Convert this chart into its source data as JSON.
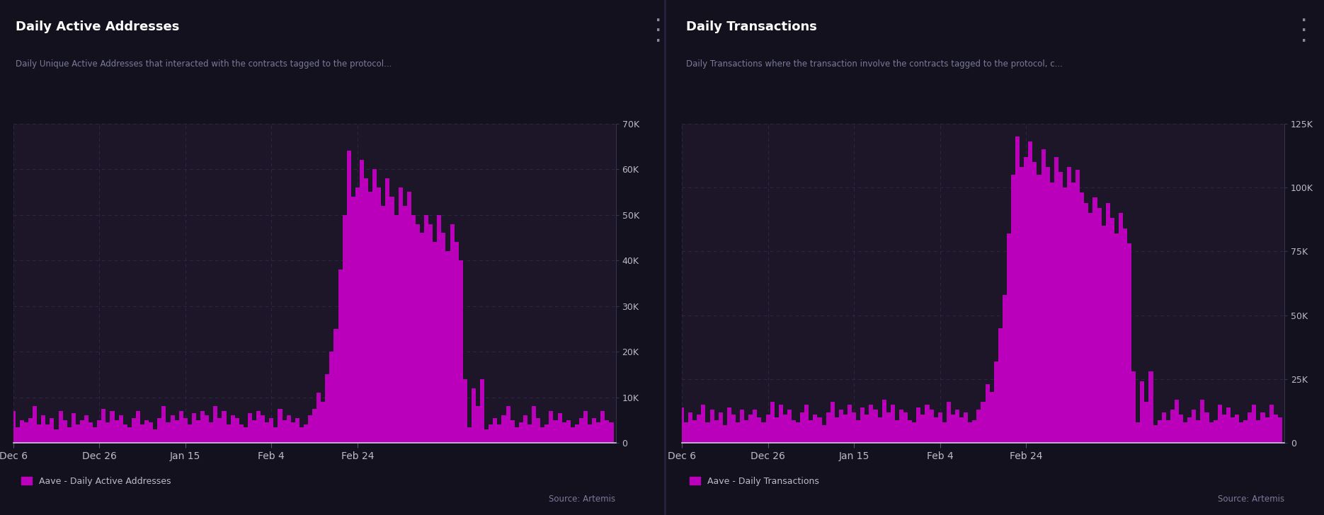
{
  "title1": "Daily Active Addresses",
  "title2": "Daily Transactions",
  "subtitle1": "Daily Unique Active Addresses that interacted with the contracts tagged to the protocol...",
  "subtitle2": "Daily Transactions where the transaction involve the contracts tagged to the protocol, c...",
  "legend1": "Aave - Daily Active Addresses",
  "legend2": "Aave - Daily Transactions",
  "source": "Source: Artemis",
  "xtick_labels": [
    "Dec 6",
    "Dec 26",
    "Jan 15",
    "Feb 4",
    "Feb 24"
  ],
  "yticks1": [
    0,
    10000,
    20000,
    30000,
    40000,
    50000,
    60000,
    70000
  ],
  "ytick_labels1": [
    "0",
    "10K",
    "20K",
    "30K",
    "40K",
    "50K",
    "60K",
    "70K"
  ],
  "yticks2": [
    0,
    25000,
    50000,
    75000,
    100000,
    125000
  ],
  "ytick_labels2": [
    "0",
    "25K",
    "50K",
    "75K",
    "100K",
    "125K"
  ],
  "bar_color": "#bb00bb",
  "bg_color": "#14111e",
  "panel_bg": "#1c1628",
  "grid_color": "#2e2645",
  "title_color": "#ffffff",
  "subtitle_color": "#7a7a9a",
  "tick_color": "#bbbbcc",
  "addresses_data": [
    7000,
    3500,
    5000,
    4500,
    5500,
    8000,
    4000,
    6000,
    4000,
    5500,
    3000,
    7000,
    5000,
    3500,
    6500,
    4000,
    5000,
    6000,
    4500,
    3500,
    5000,
    7500,
    4500,
    7000,
    5000,
    6000,
    4000,
    3500,
    5500,
    7000,
    4000,
    5000,
    4500,
    3000,
    5500,
    8000,
    4500,
    6000,
    5000,
    7000,
    5500,
    4000,
    6500,
    5000,
    7000,
    6000,
    4500,
    8000,
    5500,
    7000,
    4000,
    6000,
    5500,
    4000,
    3500,
    6500,
    5000,
    7000,
    6000,
    4500,
    5500,
    3500,
    7500,
    5000,
    6000,
    4500,
    5500,
    3500,
    4000,
    6000,
    7500,
    11000,
    9000,
    15000,
    20000,
    25000,
    38000,
    50000,
    64000,
    54000,
    56000,
    62000,
    58000,
    55000,
    60000,
    56000,
    52000,
    58000,
    54000,
    50000,
    56000,
    52000,
    55000,
    50000,
    48000,
    46000,
    50000,
    48000,
    44000,
    50000,
    46000,
    42000,
    48000,
    44000,
    40000,
    14000,
    3500,
    12000,
    8000,
    14000,
    3000,
    4000,
    5500,
    4000,
    6000,
    8000,
    5000,
    3500,
    4500,
    6000,
    4000,
    8000,
    5500,
    3500,
    4000,
    7000,
    5000,
    6500,
    4500,
    5000,
    3500,
    4000,
    5500,
    7000,
    4000,
    5500,
    4500,
    7000,
    5000,
    4500
  ],
  "transactions_data": [
    14000,
    8000,
    12000,
    9000,
    11000,
    15000,
    8000,
    13000,
    9000,
    12000,
    7000,
    14000,
    11000,
    8000,
    13000,
    9000,
    11000,
    13000,
    10000,
    8000,
    11000,
    16000,
    10000,
    15000,
    11000,
    13000,
    9000,
    8000,
    12000,
    15000,
    9000,
    11000,
    10000,
    7000,
    12000,
    16000,
    10000,
    13000,
    11000,
    15000,
    12000,
    9000,
    14000,
    11000,
    15000,
    13000,
    10000,
    17000,
    12000,
    15000,
    9000,
    13000,
    12000,
    9000,
    8000,
    14000,
    11000,
    15000,
    13000,
    10000,
    12000,
    8000,
    16000,
    11000,
    13000,
    10000,
    12000,
    8000,
    9000,
    13000,
    16000,
    23000,
    20000,
    32000,
    45000,
    58000,
    82000,
    105000,
    120000,
    108000,
    112000,
    118000,
    110000,
    105000,
    115000,
    108000,
    102000,
    112000,
    106000,
    100000,
    108000,
    102000,
    107000,
    98000,
    94000,
    90000,
    96000,
    92000,
    85000,
    94000,
    88000,
    82000,
    90000,
    84000,
    78000,
    28000,
    8000,
    24000,
    16000,
    28000,
    7000,
    9000,
    12000,
    9000,
    13000,
    17000,
    11000,
    8000,
    10000,
    13000,
    9000,
    17000,
    12000,
    8000,
    9000,
    15000,
    11000,
    14000,
    10000,
    11000,
    8000,
    9000,
    12000,
    15000,
    9000,
    12000,
    10000,
    15000,
    11000,
    10000
  ]
}
